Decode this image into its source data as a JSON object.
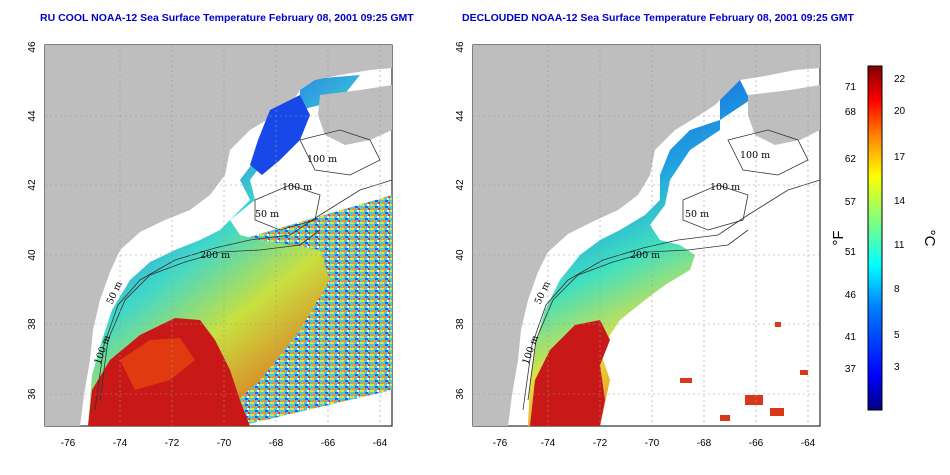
{
  "panels": [
    {
      "title": "RU COOL NOAA-12 Sea Surface Temperature February 08, 2001 09:25 GMT"
    },
    {
      "title": "DECLOUDED NOAA-12 Sea Surface Temperature February 08, 2001 09:25 GMT"
    }
  ],
  "axes": {
    "lon_ticks": [
      "-76",
      "-74",
      "-72",
      "-70",
      "-68",
      "-66",
      "-64"
    ],
    "lat_ticks": [
      "46",
      "44",
      "42",
      "40",
      "38",
      "36"
    ]
  },
  "contour_labels": [
    "100 m",
    "100 m",
    "50 m",
    "200 m",
    "50 m",
    "100 m"
  ],
  "colorbar": {
    "fahrenheit_ticks": [
      "71",
      "68",
      "62",
      "57",
      "51",
      "46",
      "41",
      "37"
    ],
    "celsius_ticks": [
      "22",
      "20",
      "17",
      "14",
      "11",
      "8",
      "5",
      "3"
    ],
    "fahrenheit_unit": "°F",
    "celsius_unit": "°C",
    "colors": [
      "#000080",
      "#0000ff",
      "#0080ff",
      "#00ffff",
      "#80ff80",
      "#ffff00",
      "#ff8000",
      "#ff0000",
      "#800000"
    ]
  },
  "colors": {
    "land": "#bebebe",
    "title": "#0000cc",
    "water_cold": "#1040e0",
    "water_warm": "#c01010"
  }
}
